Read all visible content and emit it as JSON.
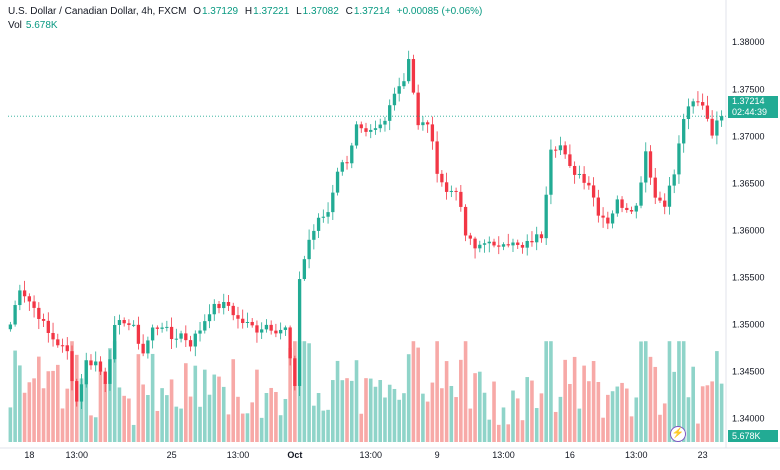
{
  "header": {
    "title": "U.S. Dollar / Canadian Dollar, 4h, FXCM",
    "open_label": "O",
    "open": "1.37129",
    "high_label": "H",
    "high": "1.37221",
    "low_label": "L",
    "low": "1.37082",
    "close_label": "C",
    "close": "1.37214",
    "change": "+0.00085 (+0.06%)",
    "vol_label": "Vol",
    "vol": "5.678K"
  },
  "price_tag": {
    "price": "1.37214",
    "countdown": "02:44:39"
  },
  "volume_tag": "5.678K",
  "colors": {
    "up": "#22ab94",
    "down": "#f23645",
    "vol_up": "#8fd4c9",
    "vol_down": "#f7a9a7",
    "text": "#131722"
  },
  "chart_data": {
    "type": "candlestick",
    "y_ticks": [
      "1.38000",
      "1.37500",
      "1.37000",
      "1.36500",
      "1.36000",
      "1.35500",
      "1.35000",
      "1.34500",
      "1.34000"
    ],
    "ylim": [
      1.3375,
      1.3813
    ],
    "x_ticks": [
      {
        "label": "18",
        "bar": 4
      },
      {
        "label": "13:00",
        "bar": 14
      },
      {
        "label": "25",
        "bar": 34
      },
      {
        "label": "13:00",
        "bar": 48
      },
      {
        "label": "Oct",
        "bar": 60
      },
      {
        "label": "13:00",
        "bar": 76
      },
      {
        "label": "9",
        "bar": 90
      },
      {
        "label": "13:00",
        "bar": 104
      },
      {
        "label": "16",
        "bar": 118
      },
      {
        "label": "13:00",
        "bar": 132
      },
      {
        "label": "23",
        "bar": 146
      }
    ],
    "current_price": 1.37214,
    "volume_max": 6.0,
    "waypoints": [
      [
        0,
        1.35
      ],
      [
        2,
        1.354
      ],
      [
        4,
        1.3525
      ],
      [
        6,
        1.351
      ],
      [
        8,
        1.349
      ],
      [
        10,
        1.348
      ],
      [
        12,
        1.347
      ],
      [
        14,
        1.3418
      ],
      [
        16,
        1.346
      ],
      [
        18,
        1.346
      ],
      [
        20,
        1.344
      ],
      [
        22,
        1.3495
      ],
      [
        24,
        1.3505
      ],
      [
        26,
        1.3495
      ],
      [
        28,
        1.347
      ],
      [
        30,
        1.3495
      ],
      [
        32,
        1.35
      ],
      [
        34,
        1.3485
      ],
      [
        36,
        1.349
      ],
      [
        38,
        1.348
      ],
      [
        40,
        1.3495
      ],
      [
        42,
        1.3515
      ],
      [
        44,
        1.352
      ],
      [
        46,
        1.352
      ],
      [
        48,
        1.3505
      ],
      [
        50,
        1.35
      ],
      [
        52,
        1.3495
      ],
      [
        54,
        1.35
      ],
      [
        56,
        1.3495
      ],
      [
        58,
        1.3495
      ],
      [
        60,
        1.343
      ],
      [
        61,
        1.355
      ],
      [
        63,
        1.359
      ],
      [
        65,
        1.361
      ],
      [
        67,
        1.362
      ],
      [
        69,
        1.3665
      ],
      [
        71,
        1.3675
      ],
      [
        73,
        1.371
      ],
      [
        75,
        1.37
      ],
      [
        77,
        1.3705
      ],
      [
        79,
        1.3715
      ],
      [
        81,
        1.375
      ],
      [
        83,
        1.376
      ],
      [
        84,
        1.3785
      ],
      [
        86,
        1.371
      ],
      [
        88,
        1.3715
      ],
      [
        90,
        1.3665
      ],
      [
        92,
        1.364
      ],
      [
        94,
        1.3645
      ],
      [
        96,
        1.3595
      ],
      [
        98,
        1.358
      ],
      [
        100,
        1.359
      ],
      [
        102,
        1.358
      ],
      [
        104,
        1.359
      ],
      [
        106,
        1.3585
      ],
      [
        108,
        1.358
      ],
      [
        110,
        1.359
      ],
      [
        112,
        1.3595
      ],
      [
        114,
        1.369
      ],
      [
        116,
        1.369
      ],
      [
        118,
        1.3665
      ],
      [
        120,
        1.366
      ],
      [
        122,
        1.365
      ],
      [
        124,
        1.362
      ],
      [
        126,
        1.361
      ],
      [
        128,
        1.363
      ],
      [
        130,
        1.3625
      ],
      [
        132,
        1.3625
      ],
      [
        134,
        1.3685
      ],
      [
        136,
        1.3635
      ],
      [
        138,
        1.363
      ],
      [
        140,
        1.366
      ],
      [
        142,
        1.372
      ],
      [
        144,
        1.3735
      ],
      [
        146,
        1.3735
      ],
      [
        148,
        1.3705
      ],
      [
        150,
        1.3721
      ]
    ]
  }
}
